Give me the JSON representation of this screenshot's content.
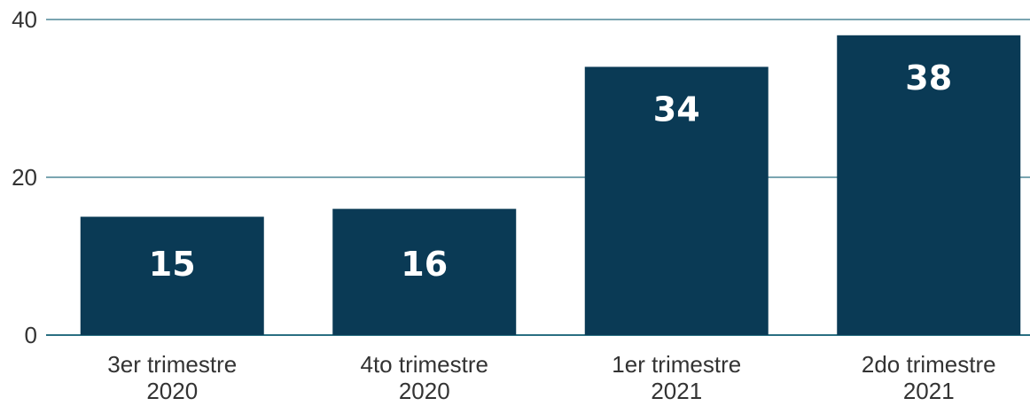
{
  "colors": {
    "bar": "#0a3a55",
    "grid": "#2a6f82",
    "text": "#333333",
    "value_text": "#ffffff"
  },
  "chart_data": {
    "type": "bar",
    "categories": [
      [
        "3er trimestre",
        "2020"
      ],
      [
        "4to trimestre",
        "2020"
      ],
      [
        "1er trimestre",
        "2021"
      ],
      [
        "2do trimestre",
        "2021"
      ]
    ],
    "values": [
      15,
      16,
      34,
      38
    ],
    "data_labels": [
      "15",
      "16",
      "34",
      "38"
    ],
    "yticks": [
      0,
      20,
      40
    ],
    "ylim": [
      0,
      40
    ],
    "grid": true,
    "title": "",
    "xlabel": "",
    "ylabel": ""
  }
}
